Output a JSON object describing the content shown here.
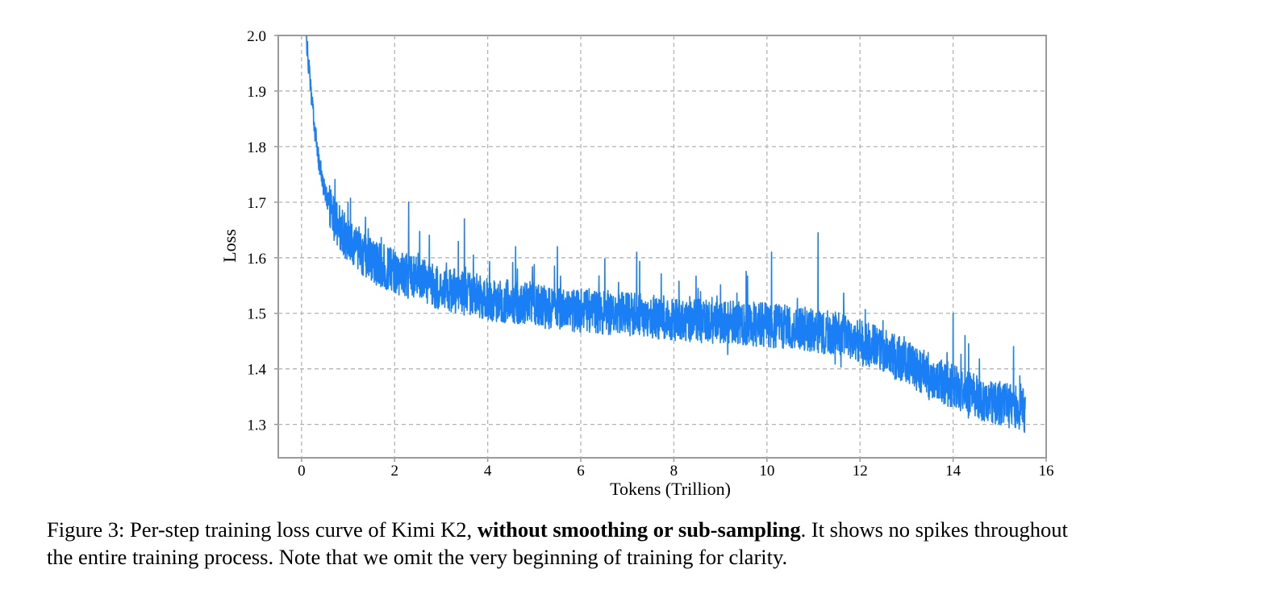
{
  "chart_data": {
    "type": "line",
    "xlabel": "Tokens (Trillion)",
    "ylabel": "Loss",
    "xlim": [
      -0.5,
      16
    ],
    "ylim": [
      1.24,
      2.0
    ],
    "xticks": [
      0,
      2,
      4,
      6,
      8,
      10,
      12,
      14,
      16
    ],
    "yticks": [
      1.3,
      1.4,
      1.5,
      1.6,
      1.7,
      1.8,
      1.9,
      2.0
    ],
    "ytick_labels": [
      "1.3",
      "1.4",
      "1.5",
      "1.6",
      "1.7",
      "1.8",
      "1.9",
      "2.0"
    ],
    "grid": true,
    "series": [
      {
        "name": "Per-step training loss",
        "color": "#1a7ff5",
        "x_range": [
          0.1,
          15.55
        ],
        "trend": {
          "x": [
            0.1,
            0.2,
            0.3,
            0.4,
            0.5,
            0.7,
            1.0,
            1.5,
            2.0,
            2.5,
            3.0,
            4.0,
            5.0,
            6.0,
            7.0,
            8.0,
            9.0,
            10.0,
            11.0,
            11.5,
            12.0,
            12.5,
            13.0,
            13.5,
            14.0,
            14.5,
            15.0,
            15.55
          ],
          "y": [
            2.0,
            1.9,
            1.82,
            1.76,
            1.72,
            1.67,
            1.63,
            1.595,
            1.575,
            1.56,
            1.545,
            1.527,
            1.515,
            1.505,
            1.498,
            1.49,
            1.485,
            1.479,
            1.47,
            1.462,
            1.45,
            1.432,
            1.41,
            1.388,
            1.368,
            1.35,
            1.338,
            1.325
          ]
        },
        "band_half_width": 0.04,
        "spike_peaks": [
          {
            "x": 1.0,
            "y": 1.7
          },
          {
            "x": 2.3,
            "y": 1.7
          },
          {
            "x": 3.5,
            "y": 1.67
          },
          {
            "x": 4.6,
            "y": 1.62
          },
          {
            "x": 5.5,
            "y": 1.62
          },
          {
            "x": 7.2,
            "y": 1.61
          },
          {
            "x": 10.1,
            "y": 1.61
          },
          {
            "x": 11.1,
            "y": 1.645
          },
          {
            "x": 14.0,
            "y": 1.5
          },
          {
            "x": 15.3,
            "y": 1.44
          }
        ]
      }
    ]
  },
  "caption": {
    "lead": "Figure 3: Per-step training loss curve of Kimi K2, ",
    "emphasis": "without smoothing or sub-sampling",
    "rest1": ". It shows no spikes throughout",
    "rest2": "the entire training process. Note that we omit the very beginning of training for clarity."
  }
}
